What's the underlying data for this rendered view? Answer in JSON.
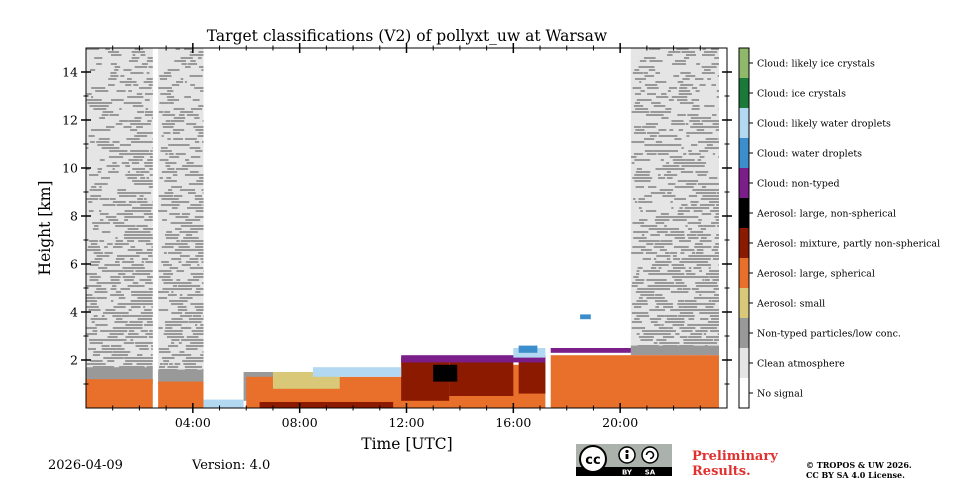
{
  "chart_data": {
    "type": "heatmap",
    "title": "Target classifications (V2) of pollyxt_uw at Warsaw",
    "xlabel": "Time [UTC]",
    "ylabel": "Height [km]",
    "xlim": [
      0,
      24
    ],
    "ylim": [
      0,
      15
    ],
    "x_ticks": [
      {
        "value": 4,
        "label": "04:00"
      },
      {
        "value": 8,
        "label": "08:00"
      },
      {
        "value": 12,
        "label": "12:00"
      },
      {
        "value": 16,
        "label": "16:00"
      },
      {
        "value": 20,
        "label": "20:00"
      }
    ],
    "y_ticks": [
      {
        "value": 2,
        "label": "2"
      },
      {
        "value": 4,
        "label": "4"
      },
      {
        "value": 6,
        "label": "6"
      },
      {
        "value": 8,
        "label": "8"
      },
      {
        "value": 10,
        "label": "10"
      },
      {
        "value": 12,
        "label": "12"
      },
      {
        "value": 14,
        "label": "14"
      }
    ],
    "legend": [
      {
        "label": "Cloud: likely ice crystals",
        "color": "#8fb86a"
      },
      {
        "label": "Cloud: ice crystals",
        "color": "#1a7a3a"
      },
      {
        "label": "Cloud: likely water droplets",
        "color": "#b3d9f2"
      },
      {
        "label": "Cloud: water droplets",
        "color": "#3b8ecb"
      },
      {
        "label": "Cloud: non-typed",
        "color": "#7b1e8a"
      },
      {
        "label": "Aerosol: large, non-spherical",
        "color": "#000000"
      },
      {
        "label": "Aerosol: mixture, partly non-spherical",
        "color": "#8b1a00"
      },
      {
        "label": "Aerosol: large, spherical",
        "color": "#e8702a"
      },
      {
        "label": "Aerosol: small",
        "color": "#d8c878"
      },
      {
        "label": "Non-typed particles/low conc.",
        "color": "#999999"
      },
      {
        "label": "Clean atmosphere",
        "color": "#e5e5e5"
      },
      {
        "label": "No signal",
        "color": "#ffffff"
      }
    ],
    "regions": [
      {
        "class": "Clean atmosphere",
        "x0": 0,
        "x1": 2.5,
        "y0": 1.7,
        "y1": 15
      },
      {
        "class": "Clean atmosphere",
        "x0": 2.7,
        "x1": 4.4,
        "y0": 1.6,
        "y1": 15
      },
      {
        "class": "Clean atmosphere",
        "x0": 20.4,
        "x1": 23.7,
        "y0": 2.3,
        "y1": 15
      },
      {
        "class": "Non-typed particles/low conc.",
        "x0": 0,
        "x1": 2.5,
        "y0": 1.0,
        "y1": 1.7
      },
      {
        "class": "Non-typed particles/low conc.",
        "x0": 2.7,
        "x1": 4.4,
        "y0": 1.0,
        "y1": 1.6
      },
      {
        "class": "Non-typed particles/low conc.",
        "x0": 5.9,
        "x1": 7.2,
        "y0": 0.3,
        "y1": 1.5
      },
      {
        "class": "Non-typed particles/low conc.",
        "x0": 20.4,
        "x1": 23.7,
        "y0": 2.2,
        "y1": 2.6
      },
      {
        "class": "Aerosol: large, spherical",
        "x0": 0,
        "x1": 2.5,
        "y0": 0,
        "y1": 1.2
      },
      {
        "class": "Aerosol: large, spherical",
        "x0": 2.7,
        "x1": 4.4,
        "y0": 0,
        "y1": 1.1
      },
      {
        "class": "Aerosol: large, spherical",
        "x0": 6.0,
        "x1": 12.0,
        "y0": 0,
        "y1": 1.3
      },
      {
        "class": "Aerosol: large, spherical",
        "x0": 12.0,
        "x1": 17.2,
        "y0": 0,
        "y1": 1.8
      },
      {
        "class": "Aerosol: large, spherical",
        "x0": 17.4,
        "x1": 23.7,
        "y0": 0,
        "y1": 2.2
      },
      {
        "class": "Aerosol: small",
        "x0": 7.0,
        "x1": 9.5,
        "y0": 0.8,
        "y1": 1.5
      },
      {
        "class": "Aerosol: mixture, partly non-spherical",
        "x0": 11.8,
        "x1": 13.6,
        "y0": 0.3,
        "y1": 2.1
      },
      {
        "class": "Aerosol: mixture, partly non-spherical",
        "x0": 13.6,
        "x1": 16.0,
        "y0": 0.5,
        "y1": 2.0
      },
      {
        "class": "Aerosol: mixture, partly non-spherical",
        "x0": 16.2,
        "x1": 17.2,
        "y0": 0.6,
        "y1": 2.2
      },
      {
        "class": "Aerosol: mixture, partly non-spherical",
        "x0": 6.5,
        "x1": 11.5,
        "y0": 0,
        "y1": 0.25
      },
      {
        "class": "Aerosol: large, non-spherical",
        "x0": 13.0,
        "x1": 13.9,
        "y0": 1.1,
        "y1": 1.8
      },
      {
        "class": "Cloud: non-typed",
        "x0": 11.8,
        "x1": 17.2,
        "y0": 1.9,
        "y1": 2.2
      },
      {
        "class": "Cloud: non-typed",
        "x0": 17.4,
        "x1": 20.4,
        "y0": 2.3,
        "y1": 2.5
      },
      {
        "class": "Cloud: likely water droplets",
        "x0": 4.4,
        "x1": 5.9,
        "y0": 0,
        "y1": 0.35
      },
      {
        "class": "Cloud: likely water droplets",
        "x0": 8.5,
        "x1": 11.8,
        "y0": 1.3,
        "y1": 1.7
      },
      {
        "class": "Cloud: likely water droplets",
        "x0": 16.0,
        "x1": 17.2,
        "y0": 2.1,
        "y1": 2.5
      },
      {
        "class": "Cloud: water droplets",
        "x0": 16.2,
        "x1": 16.9,
        "y0": 2.3,
        "y1": 2.6
      },
      {
        "class": "Cloud: water droplets",
        "x0": 18.5,
        "x1": 18.9,
        "y0": 3.7,
        "y1": 3.9
      }
    ]
  },
  "footer": {
    "date": "2026-04-09",
    "version": "Version: 4.0",
    "preliminary": "Preliminary Results.",
    "copyright_line1": "© TROPOS & UW 2026.",
    "copyright_line2": "CC BY SA 4.0 License.",
    "cc_label": "cc",
    "cc_by": "BY",
    "cc_sa": "SA"
  }
}
